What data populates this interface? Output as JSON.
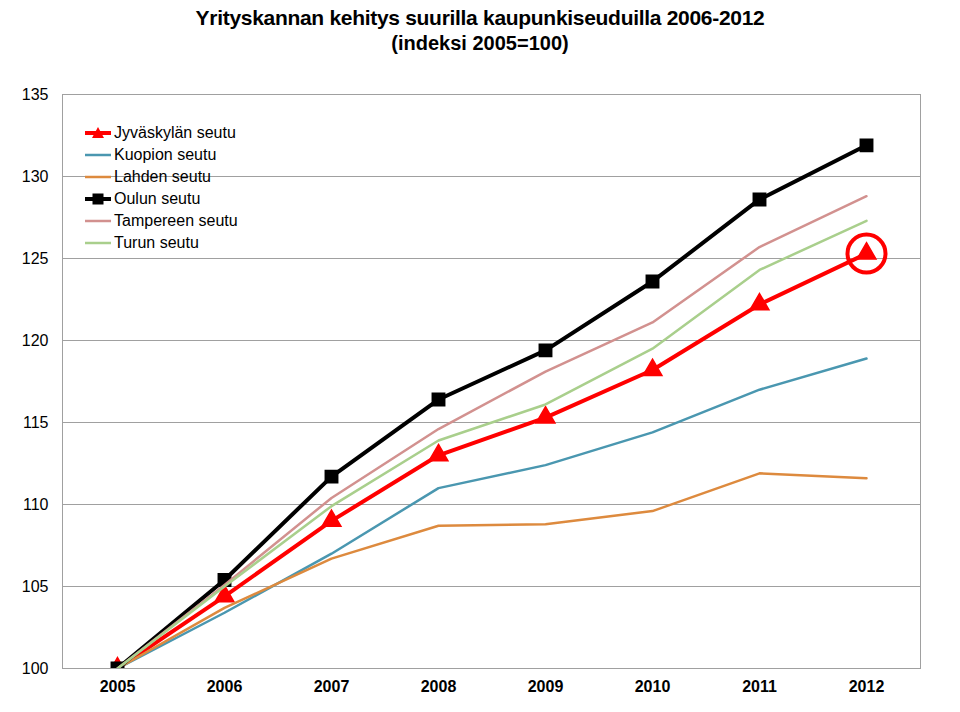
{
  "chart_data": {
    "type": "line",
    "title": "Yrityskannan kehitys suurilla kaupunkiseuduilla 2006-2012",
    "subtitle": "(indeksi 2005=100)",
    "categories": [
      "2005",
      "2006",
      "2007",
      "2008",
      "2009",
      "2010",
      "2011",
      "2012"
    ],
    "series": [
      {
        "name": "Jyväskylän seutu",
        "color": "#ff0000",
        "marker": "triangle",
        "values": [
          100,
          104.4,
          109.0,
          113.0,
          115.3,
          118.2,
          122.2,
          125.3
        ]
      },
      {
        "name": "Kuopion seutu",
        "color": "#4a97b0",
        "marker": "none",
        "values": [
          100,
          103.4,
          107.0,
          111.0,
          112.4,
          114.4,
          117.0,
          118.9
        ]
      },
      {
        "name": "Lahden seutu",
        "color": "#dd8a3e",
        "marker": "none",
        "values": [
          100,
          103.7,
          106.7,
          108.7,
          108.8,
          109.6,
          111.9,
          111.6
        ]
      },
      {
        "name": "Oulun seutu",
        "color": "#000000",
        "marker": "square",
        "values": [
          100,
          105.4,
          111.7,
          116.4,
          119.4,
          123.6,
          128.6,
          131.9
        ]
      },
      {
        "name": "Tampereen seutu",
        "color": "#d2918f",
        "marker": "none",
        "values": [
          100,
          105.1,
          110.4,
          114.6,
          118.1,
          121.1,
          125.7,
          128.8
        ]
      },
      {
        "name": "Turun seutu",
        "color": "#a9cf8c",
        "marker": "none",
        "values": [
          100,
          105.0,
          109.9,
          113.9,
          116.1,
          119.5,
          124.3,
          127.3
        ]
      }
    ],
    "ylim": [
      100,
      135
    ],
    "yticks": [
      100,
      105,
      110,
      115,
      120,
      125,
      130,
      135
    ],
    "grid": true,
    "legend": "top-left"
  }
}
